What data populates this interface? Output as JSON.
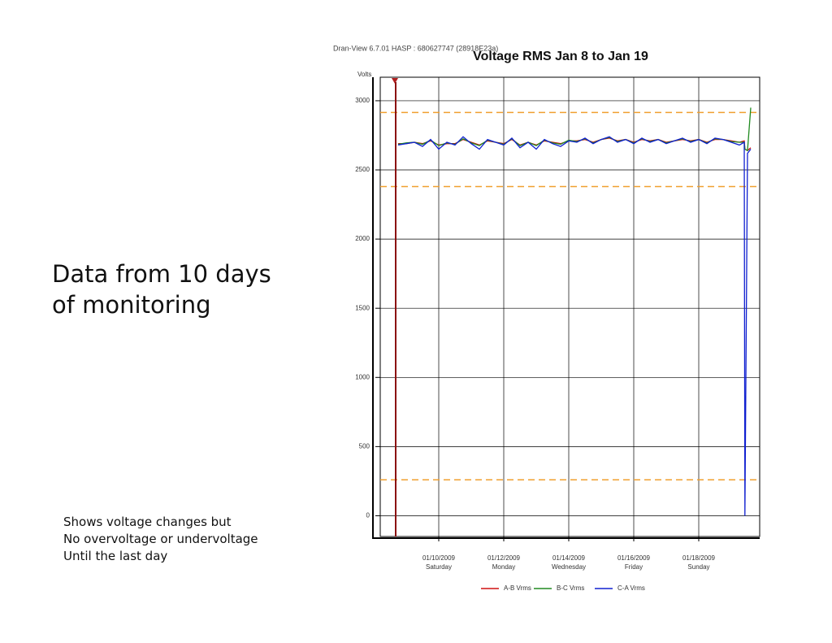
{
  "slide": {
    "heading": [
      "Data from 10 days",
      "of monitoring"
    ],
    "notes": [
      "Shows voltage changes but",
      "No overvoltage or undervoltage",
      "Until the last day"
    ]
  },
  "chart_data": {
    "type": "line",
    "header": "Dran-View 6.7.01 HASP : 680627747 (28918E23a)",
    "title": "Voltage RMS Jan 8 to Jan 19",
    "ylabel": "Volts",
    "xlim": [
      8.2,
      19.875
    ],
    "ylim": [
      -150,
      3170
    ],
    "yticks": [
      0,
      500,
      1000,
      1500,
      2000,
      2500,
      3000
    ],
    "xticks": [
      {
        "value": 10,
        "label": "01/10/2009",
        "day": "Saturday"
      },
      {
        "value": 12,
        "label": "01/12/2009",
        "day": "Monday"
      },
      {
        "value": 14,
        "label": "01/14/2009",
        "day": "Wednesday"
      },
      {
        "value": 16,
        "label": "01/16/2009",
        "day": "Friday"
      },
      {
        "value": 18,
        "label": "01/18/2009",
        "day": "Sunday"
      }
    ],
    "grid": true,
    "cursor_x": 8.675,
    "reference_lines": {
      "color": "#f0a030",
      "values": [
        2915,
        2380,
        260
      ]
    },
    "x": [
      8.75,
      9,
      9.25,
      9.5,
      9.75,
      10,
      10.25,
      10.5,
      10.75,
      11,
      11.25,
      11.5,
      11.75,
      12,
      12.25,
      12.5,
      12.75,
      13,
      13.25,
      13.5,
      13.75,
      14,
      14.25,
      14.5,
      14.75,
      15,
      15.25,
      15.5,
      15.75,
      16,
      16.25,
      16.5,
      16.75,
      17,
      17.25,
      17.5,
      17.75,
      18,
      18.25,
      18.5,
      18.75,
      19,
      19.25,
      19.4,
      19.42,
      19.5,
      19.6
    ],
    "series": [
      {
        "name": "A-B Vrms",
        "color": "#d01010",
        "values": [
          2690,
          2690,
          2700,
          2690,
          2710,
          2680,
          2690,
          2690,
          2720,
          2700,
          2680,
          2710,
          2700,
          2690,
          2720,
          2680,
          2700,
          2680,
          2710,
          2700,
          2690,
          2710,
          2710,
          2720,
          2700,
          2720,
          2730,
          2710,
          2720,
          2700,
          2720,
          2710,
          2720,
          2700,
          2710,
          2720,
          2710,
          2720,
          2700,
          2720,
          2720,
          2710,
          2700,
          2710,
          2650,
          2640,
          2660
        ]
      },
      {
        "name": "B-C Vrms",
        "color": "#208a20",
        "values": [
          2685,
          2695,
          2700,
          2685,
          2715,
          2675,
          2695,
          2685,
          2725,
          2695,
          2675,
          2715,
          2700,
          2685,
          2725,
          2675,
          2700,
          2675,
          2715,
          2695,
          2685,
          2715,
          2705,
          2725,
          2695,
          2720,
          2735,
          2705,
          2720,
          2695,
          2725,
          2705,
          2720,
          2695,
          2710,
          2725,
          2705,
          2720,
          2695,
          2725,
          2720,
          2705,
          2700,
          2700,
          2650,
          2640,
          2950
        ]
      },
      {
        "name": "C-A Vrms",
        "color": "#1020d0",
        "values": [
          2680,
          2690,
          2700,
          2670,
          2720,
          2650,
          2700,
          2680,
          2740,
          2690,
          2650,
          2720,
          2700,
          2680,
          2730,
          2660,
          2700,
          2650,
          2720,
          2690,
          2670,
          2710,
          2700,
          2730,
          2690,
          2720,
          2740,
          2700,
          2720,
          2690,
          2730,
          2700,
          2720,
          2690,
          2710,
          2730,
          2700,
          2720,
          2690,
          2730,
          2720,
          2700,
          2680,
          2700,
          0,
          2620,
          2650
        ]
      }
    ]
  }
}
